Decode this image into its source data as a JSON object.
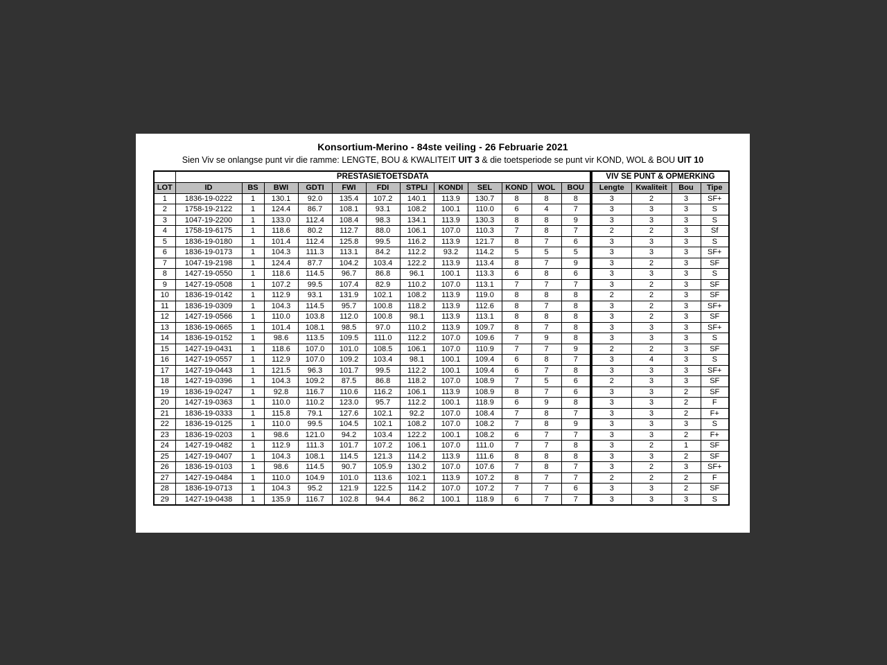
{
  "document": {
    "title": "Konsortium-Merino - 84ste veiling - 26 Februarie 2021",
    "subtitle": {
      "part1": "Sien Viv se onlangse punt vir die ramme: LENGTE, BOU & KWALITEIT ",
      "bold1": "UIT 3",
      "part2": " & die toetsperiode se punt vir KOND, WOL & BOU ",
      "bold2": "UIT 10"
    }
  },
  "table": {
    "section_headers": {
      "left": "PRESTASIETOETSDATA",
      "right": "VIV SE PUNT & OPMERKING"
    },
    "columns": [
      "LOT",
      "ID",
      "BS",
      "BWI",
      "GDTI",
      "FWI",
      "FDI",
      "STPLI",
      "KONDI",
      "SEL",
      "KOND",
      "WOL",
      "BOU",
      "Lengte",
      "Kwaliteit",
      "Bou",
      "Tipe"
    ],
    "rows": [
      [
        "1",
        "1836-19-0222",
        "1",
        "130.1",
        "92.0",
        "135.4",
        "107.2",
        "140.1",
        "113.9",
        "130.7",
        "8",
        "8",
        "8",
        "3",
        "2",
        "3",
        "SF+"
      ],
      [
        "2",
        "1758-19-2122",
        "1",
        "124.4",
        "86.7",
        "108.1",
        "93.1",
        "108.2",
        "100.1",
        "110.0",
        "6",
        "4",
        "7",
        "3",
        "3",
        "3",
        "S"
      ],
      [
        "3",
        "1047-19-2200",
        "1",
        "133.0",
        "112.4",
        "108.4",
        "98.3",
        "134.1",
        "113.9",
        "130.3",
        "8",
        "8",
        "9",
        "3",
        "3",
        "3",
        "S"
      ],
      [
        "4",
        "1758-19-6175",
        "1",
        "118.6",
        "80.2",
        "112.7",
        "88.0",
        "106.1",
        "107.0",
        "110.3",
        "7",
        "8",
        "7",
        "2",
        "2",
        "3",
        "Sf"
      ],
      [
        "5",
        "1836-19-0180",
        "1",
        "101.4",
        "112.4",
        "125.8",
        "99.5",
        "116.2",
        "113.9",
        "121.7",
        "8",
        "7",
        "6",
        "3",
        "3",
        "3",
        "S"
      ],
      [
        "6",
        "1836-19-0173",
        "1",
        "104.3",
        "111.3",
        "113.1",
        "84.2",
        "112.2",
        "93.2",
        "114.2",
        "5",
        "5",
        "5",
        "3",
        "3",
        "3",
        "SF+"
      ],
      [
        "7",
        "1047-19-2198",
        "1",
        "124.4",
        "87.7",
        "104.2",
        "103.4",
        "122.2",
        "113.9",
        "113.4",
        "8",
        "7",
        "9",
        "3",
        "2",
        "3",
        "SF"
      ],
      [
        "8",
        "1427-19-0550",
        "1",
        "118.6",
        "114.5",
        "96.7",
        "86.8",
        "96.1",
        "100.1",
        "113.3",
        "6",
        "8",
        "6",
        "3",
        "3",
        "3",
        "S"
      ],
      [
        "9",
        "1427-19-0508",
        "1",
        "107.2",
        "99.5",
        "107.4",
        "82.9",
        "110.2",
        "107.0",
        "113.1",
        "7",
        "7",
        "7",
        "3",
        "2",
        "3",
        "SF"
      ],
      [
        "10",
        "1836-19-0142",
        "1",
        "112.9",
        "93.1",
        "131.9",
        "102.1",
        "108.2",
        "113.9",
        "119.0",
        "8",
        "8",
        "8",
        "2",
        "2",
        "3",
        "SF"
      ],
      [
        "11",
        "1836-19-0309",
        "1",
        "104.3",
        "114.5",
        "95.7",
        "100.8",
        "118.2",
        "113.9",
        "112.6",
        "8",
        "7",
        "8",
        "3",
        "2",
        "3",
        "SF+"
      ],
      [
        "12",
        "1427-19-0566",
        "1",
        "110.0",
        "103.8",
        "112.0",
        "100.8",
        "98.1",
        "113.9",
        "113.1",
        "8",
        "8",
        "8",
        "3",
        "2",
        "3",
        "SF"
      ],
      [
        "13",
        "1836-19-0665",
        "1",
        "101.4",
        "108.1",
        "98.5",
        "97.0",
        "110.2",
        "113.9",
        "109.7",
        "8",
        "7",
        "8",
        "3",
        "3",
        "3",
        "SF+"
      ],
      [
        "14",
        "1836-19-0152",
        "1",
        "98.6",
        "113.5",
        "109.5",
        "111.0",
        "112.2",
        "107.0",
        "109.6",
        "7",
        "9",
        "8",
        "3",
        "3",
        "3",
        "S"
      ],
      [
        "15",
        "1427-19-0431",
        "1",
        "118.6",
        "107.0",
        "101.0",
        "108.5",
        "106.1",
        "107.0",
        "110.9",
        "7",
        "7",
        "9",
        "2",
        "2",
        "3",
        "SF"
      ],
      [
        "16",
        "1427-19-0557",
        "1",
        "112.9",
        "107.0",
        "109.2",
        "103.4",
        "98.1",
        "100.1",
        "109.4",
        "6",
        "8",
        "7",
        "3",
        "4",
        "3",
        "S"
      ],
      [
        "17",
        "1427-19-0443",
        "1",
        "121.5",
        "96.3",
        "101.7",
        "99.5",
        "112.2",
        "100.1",
        "109.4",
        "6",
        "7",
        "8",
        "3",
        "3",
        "3",
        "SF+"
      ],
      [
        "18",
        "1427-19-0396",
        "1",
        "104.3",
        "109.2",
        "87.5",
        "86.8",
        "118.2",
        "107.0",
        "108.9",
        "7",
        "5",
        "6",
        "2",
        "3",
        "3",
        "SF"
      ],
      [
        "19",
        "1836-19-0247",
        "1",
        "92.8",
        "116.7",
        "110.6",
        "116.2",
        "106.1",
        "113.9",
        "108.9",
        "8",
        "7",
        "6",
        "3",
        "3",
        "2",
        "SF"
      ],
      [
        "20",
        "1427-19-0363",
        "1",
        "110.0",
        "110.2",
        "123.0",
        "95.7",
        "112.2",
        "100.1",
        "118.9",
        "6",
        "9",
        "8",
        "3",
        "3",
        "2",
        "F"
      ],
      [
        "21",
        "1836-19-0333",
        "1",
        "115.8",
        "79.1",
        "127.6",
        "102.1",
        "92.2",
        "107.0",
        "108.4",
        "7",
        "8",
        "7",
        "3",
        "3",
        "2",
        "F+"
      ],
      [
        "22",
        "1836-19-0125",
        "1",
        "110.0",
        "99.5",
        "104.5",
        "102.1",
        "108.2",
        "107.0",
        "108.2",
        "7",
        "8",
        "9",
        "3",
        "3",
        "3",
        "S"
      ],
      [
        "23",
        "1836-19-0203",
        "1",
        "98.6",
        "121.0",
        "94.2",
        "103.4",
        "122.2",
        "100.1",
        "108.2",
        "6",
        "7",
        "7",
        "3",
        "3",
        "2",
        "F+"
      ],
      [
        "24",
        "1427-19-0482",
        "1",
        "112.9",
        "111.3",
        "101.7",
        "107.2",
        "106.1",
        "107.0",
        "111.0",
        "7",
        "7",
        "8",
        "3",
        "2",
        "1",
        "SF"
      ],
      [
        "25",
        "1427-19-0407",
        "1",
        "104.3",
        "108.1",
        "114.5",
        "121.3",
        "114.2",
        "113.9",
        "111.6",
        "8",
        "8",
        "8",
        "3",
        "3",
        "2",
        "SF"
      ],
      [
        "26",
        "1836-19-0103",
        "1",
        "98.6",
        "114.5",
        "90.7",
        "105.9",
        "130.2",
        "107.0",
        "107.6",
        "7",
        "8",
        "7",
        "3",
        "2",
        "3",
        "SF+"
      ],
      [
        "27",
        "1427-19-0484",
        "1",
        "110.0",
        "104.9",
        "101.0",
        "113.6",
        "102.1",
        "113.9",
        "107.2",
        "8",
        "7",
        "7",
        "2",
        "2",
        "2",
        "F"
      ],
      [
        "28",
        "1836-19-0713",
        "1",
        "104.3",
        "95.2",
        "121.9",
        "122.5",
        "114.2",
        "107.0",
        "107.2",
        "7",
        "7",
        "6",
        "3",
        "3",
        "2",
        "SF"
      ],
      [
        "29",
        "1427-19-0438",
        "1",
        "135.9",
        "116.7",
        "102.8",
        "94.4",
        "86.2",
        "100.1",
        "118.9",
        "6",
        "7",
        "7",
        "3",
        "3",
        "3",
        "S"
      ]
    ]
  },
  "colors": {
    "page_bg": "#323232",
    "paper_bg": "#ffffff",
    "header_bg": "#bfbfbf",
    "border": "#000000"
  }
}
